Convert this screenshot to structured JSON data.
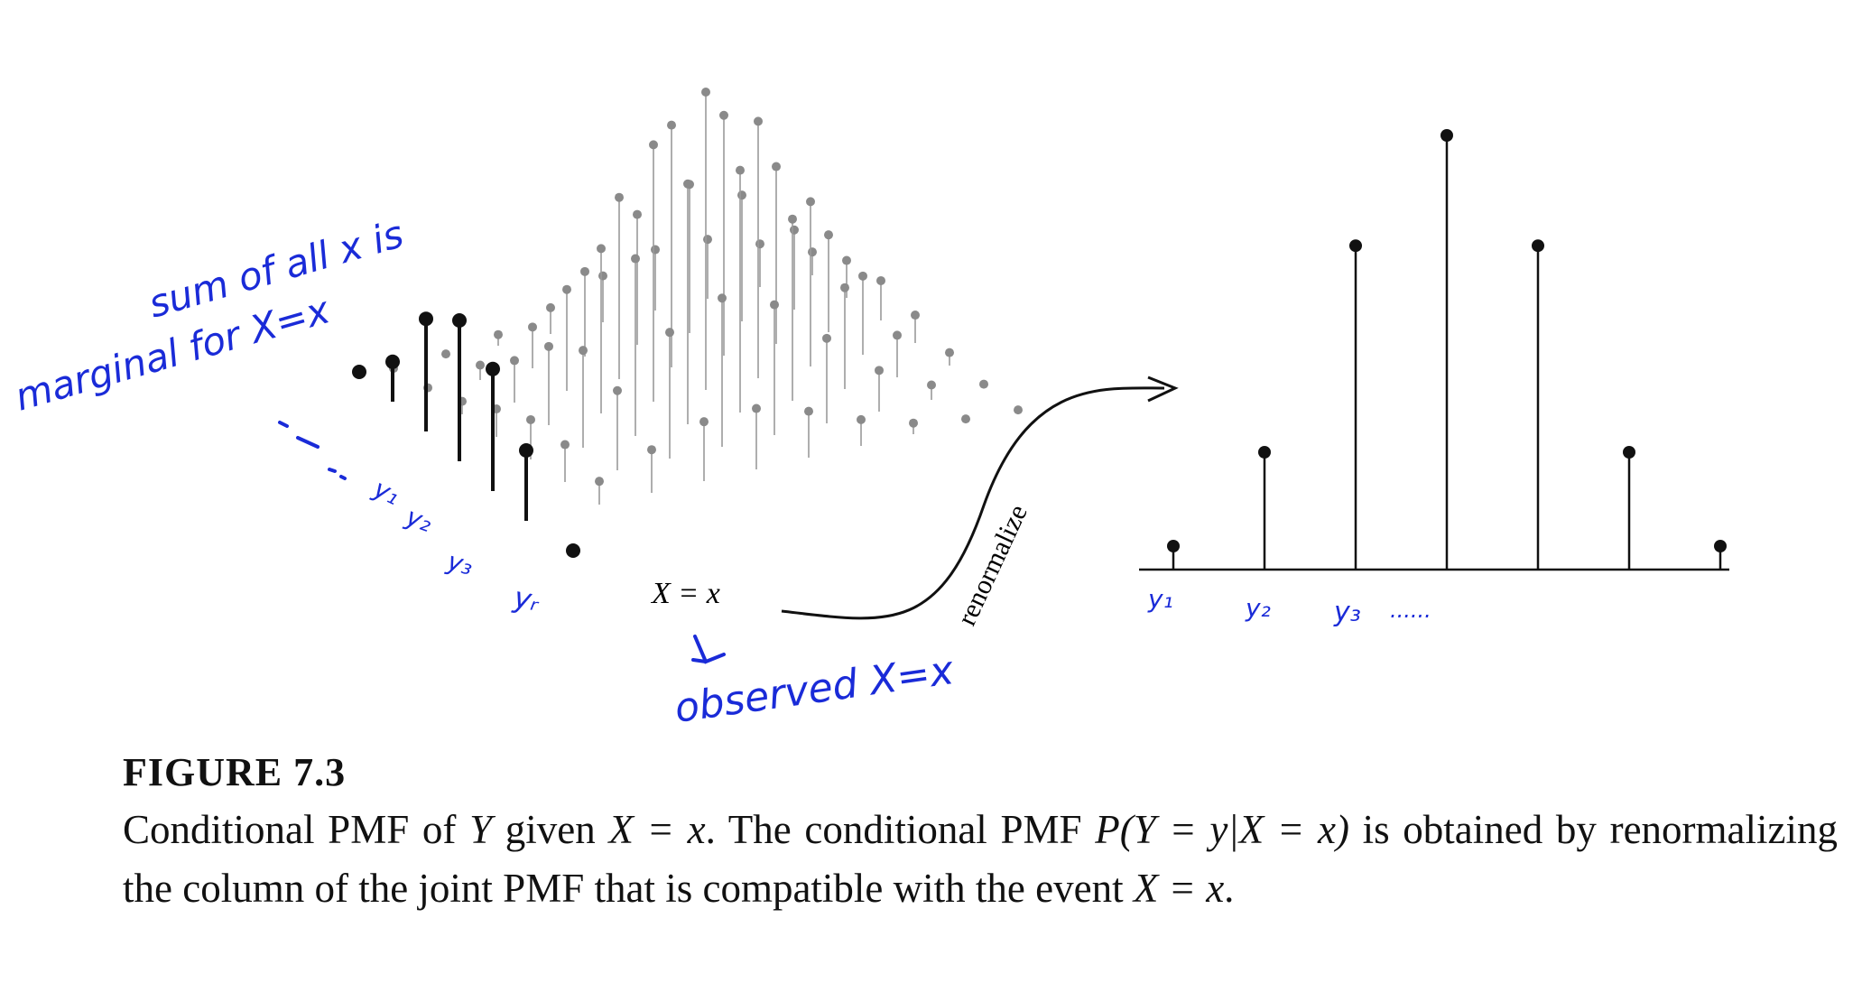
{
  "figure": {
    "x_observed_label": "X = x",
    "arrow_label": "renormalize",
    "joint_pmf": {
      "active_column_heights": [
        0.0,
        0.17,
        0.48,
        0.6,
        0.52,
        0.3,
        0.0
      ],
      "background_columns": 9
    },
    "conditional_pmf": {
      "values": [
        0.1,
        0.5,
        1.38,
        1.85,
        1.38,
        0.5,
        0.1
      ]
    },
    "handwritten": {
      "line1": "sum of all x is",
      "line2": "marginal for X=x",
      "y_labels_joint": [
        "y₁",
        "y₂",
        "y₃",
        "yᵣ"
      ],
      "observed_note": "observed X=x",
      "y_labels_cond": [
        "y₁",
        "y₂",
        "y₃",
        "......"
      ]
    },
    "colors": {
      "ink": "#111111",
      "gray": "#8a8a8a",
      "hand": "#1a2bd8"
    }
  },
  "caption": {
    "heading": "FIGURE 7.3",
    "body_parts": [
      "Conditional PMF of ",
      "Y",
      " given ",
      "X = x",
      ". The conditional PMF ",
      "P(Y = y|X = x)",
      " is obtained by renormalizing the column of the joint PMF that is compatible with the event ",
      "X = x",
      "."
    ]
  }
}
